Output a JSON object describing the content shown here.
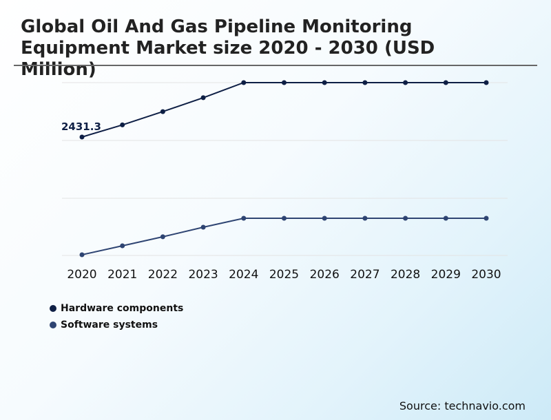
{
  "header": {
    "title": "Global Oil And Gas Pipeline Monitoring Equipment Market size 2020 - 2030 (USD Million)"
  },
  "footer": {
    "source": "Source: technavio.com"
  },
  "colors": {
    "hardware": "#0e1f45",
    "software": "#2e4472",
    "gridline": "#e3e3e3"
  },
  "chart_data": {
    "type": "line",
    "title": "Global Oil And Gas Pipeline Monitoring Equipment Market size 2020 - 2030 (USD Million)",
    "x": [
      "2020",
      "2021",
      "2022",
      "2023",
      "2024",
      "2025",
      "2026",
      "2027",
      "2028",
      "2029",
      "2030"
    ],
    "series": [
      {
        "name": "Hardware components",
        "values": [
          2431.3,
          2640,
          2870,
          3110,
          3370,
          3370,
          3370,
          3370,
          3370,
          3370,
          3370
        ]
      },
      {
        "name": "Software systems",
        "values": [
          400,
          560,
          720,
          890,
          1050,
          1050,
          1050,
          1050,
          1050,
          1050,
          1050
        ]
      }
    ],
    "data_labels": [
      {
        "series": 0,
        "index": 0,
        "text": "2431.3"
      }
    ],
    "ylim": [
      400,
      3370
    ],
    "grid": true,
    "y_axis_labels": false,
    "legend": "bottom-left"
  }
}
